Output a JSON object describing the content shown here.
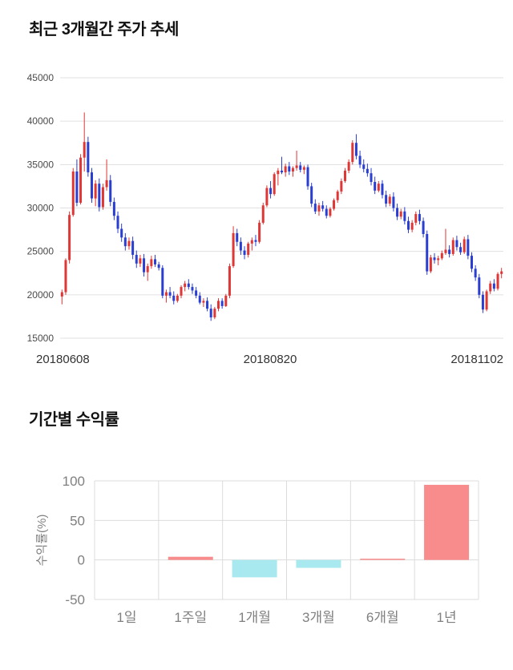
{
  "chart_data": [
    {
      "type": "candlestick",
      "title": "최근 3개월간 주가 추세",
      "x_labels": [
        "20180608",
        "20180820",
        "20181102"
      ],
      "y_ticks": [
        15000,
        20000,
        25000,
        30000,
        35000,
        40000,
        45000
      ],
      "y_min": 15000,
      "y_max": 45000,
      "up_color": "#df3636",
      "down_color": "#2a3fd2",
      "grid_color": "#e0e0e0",
      "legend": "none",
      "columns": [
        "open",
        "high",
        "low",
        "close"
      ],
      "candles": [
        [
          19800,
          20600,
          18900,
          20300
        ],
        [
          20300,
          24200,
          20000,
          24000
        ],
        [
          24000,
          29600,
          23600,
          29200
        ],
        [
          29200,
          34600,
          29000,
          34200
        ],
        [
          34200,
          35600,
          30200,
          30600
        ],
        [
          30600,
          36200,
          30400,
          35800
        ],
        [
          35800,
          41000,
          34200,
          37600
        ],
        [
          37600,
          38200,
          33600,
          34100
        ],
        [
          34100,
          34600,
          30600,
          31100
        ],
        [
          31100,
          33200,
          30200,
          32800
        ],
        [
          32800,
          33400,
          29600,
          30100
        ],
        [
          30100,
          32800,
          29800,
          32400
        ],
        [
          32400,
          35600,
          32000,
          33200
        ],
        [
          33200,
          33800,
          30200,
          30700
        ],
        [
          30700,
          31200,
          28600,
          29100
        ],
        [
          29100,
          29600,
          27100,
          27600
        ],
        [
          27600,
          28200,
          26100,
          26600
        ],
        [
          26600,
          27100,
          25100,
          25600
        ],
        [
          25600,
          26600,
          25200,
          26200
        ],
        [
          26200,
          26700,
          24100,
          24600
        ],
        [
          24600,
          25100,
          23100,
          23600
        ],
        [
          23600,
          24600,
          23200,
          24200
        ],
        [
          24200,
          24700,
          22100,
          22600
        ],
        [
          22600,
          23600,
          21600,
          23300
        ],
        [
          23300,
          24500,
          23000,
          24100
        ],
        [
          24100,
          24600,
          23200,
          23500
        ],
        [
          23500,
          23800,
          22800,
          23100
        ],
        [
          23100,
          23400,
          19600,
          19900
        ],
        [
          19900,
          20600,
          19100,
          20300
        ],
        [
          20300,
          20900,
          19600,
          19900
        ],
        [
          19900,
          20400,
          18900,
          19300
        ],
        [
          19300,
          20100,
          19100,
          19900
        ],
        [
          19900,
          21100,
          19600,
          20900
        ],
        [
          20900,
          21600,
          20400,
          21300
        ],
        [
          21300,
          21800,
          20600,
          20900
        ],
        [
          20900,
          21300,
          20100,
          20500
        ],
        [
          20500,
          20900,
          19600,
          19900
        ],
        [
          19900,
          20300,
          18900,
          19100
        ],
        [
          19100,
          19600,
          18600,
          19300
        ],
        [
          19300,
          19700,
          18100,
          18400
        ],
        [
          18400,
          18900,
          17000,
          17400
        ],
        [
          17400,
          18600,
          17200,
          18400
        ],
        [
          18400,
          19600,
          18100,
          19300
        ],
        [
          19300,
          19600,
          18400,
          18700
        ],
        [
          18700,
          20100,
          18600,
          19900
        ],
        [
          19900,
          23600,
          19600,
          23300
        ],
        [
          23300,
          27900,
          23100,
          27100
        ],
        [
          27100,
          27600,
          25600,
          26100
        ],
        [
          26100,
          26600,
          24600,
          25100
        ],
        [
          25100,
          25600,
          24100,
          24600
        ],
        [
          24600,
          26100,
          24300,
          25900
        ],
        [
          25900,
          26600,
          25100,
          26300
        ],
        [
          26300,
          26900,
          25600,
          26100
        ],
        [
          26100,
          28600,
          25900,
          28300
        ],
        [
          28300,
          30600,
          28100,
          30300
        ],
        [
          30300,
          32600,
          30100,
          32300
        ],
        [
          32300,
          33100,
          31100,
          31600
        ],
        [
          31600,
          34100,
          31400,
          33900
        ],
        [
          33900,
          34600,
          32600,
          34300
        ],
        [
          34300,
          35900,
          33900,
          34100
        ],
        [
          34100,
          35100,
          33600,
          34800
        ],
        [
          34800,
          35300,
          33800,
          34200
        ],
        [
          34200,
          34800,
          33600,
          34600
        ],
        [
          34600,
          36600,
          34300,
          34900
        ],
        [
          34900,
          35300,
          34100,
          34400
        ],
        [
          34400,
          34900,
          33900,
          34700
        ],
        [
          34700,
          35000,
          32100,
          32500
        ],
        [
          32500,
          32900,
          30100,
          30500
        ],
        [
          30500,
          31000,
          29300,
          29600
        ],
        [
          29600,
          30600,
          29100,
          30300
        ],
        [
          30300,
          30800,
          29600,
          29900
        ],
        [
          29900,
          30300,
          28800,
          29100
        ],
        [
          29100,
          30100,
          28900,
          29900
        ],
        [
          29900,
          31100,
          29700,
          30900
        ],
        [
          30900,
          32100,
          30600,
          31900
        ],
        [
          31900,
          33400,
          31600,
          33100
        ],
        [
          33100,
          34600,
          32900,
          34300
        ],
        [
          34300,
          35600,
          34000,
          35300
        ],
        [
          35300,
          37800,
          35000,
          37500
        ],
        [
          37500,
          38500,
          35600,
          36000
        ],
        [
          36000,
          36600,
          34600,
          35000
        ],
        [
          35000,
          35600,
          34100,
          34500
        ],
        [
          34500,
          35100,
          33600,
          34000
        ],
        [
          34000,
          34600,
          32600,
          33000
        ],
        [
          33000,
          33600,
          31600,
          32000
        ],
        [
          32000,
          33100,
          31800,
          32800
        ],
        [
          32800,
          33200,
          31100,
          31500
        ],
        [
          31500,
          32000,
          30100,
          30500
        ],
        [
          30500,
          31600,
          30200,
          31300
        ],
        [
          31300,
          31800,
          29600,
          30000
        ],
        [
          30000,
          30500,
          28600,
          29000
        ],
        [
          29000,
          29900,
          28700,
          29600
        ],
        [
          29600,
          30100,
          28100,
          28500
        ],
        [
          28500,
          29000,
          27100,
          27500
        ],
        [
          27500,
          28600,
          27200,
          28300
        ],
        [
          28300,
          29600,
          28000,
          29300
        ],
        [
          29300,
          29800,
          28100,
          28500
        ],
        [
          28500,
          28900,
          26600,
          27000
        ],
        [
          27000,
          27400,
          22300,
          22700
        ],
        [
          22700,
          24600,
          22500,
          24300
        ],
        [
          24300,
          24800,
          23600,
          24000
        ],
        [
          24000,
          24500,
          23400,
          24200
        ],
        [
          24200,
          25100,
          24000,
          24800
        ],
        [
          24800,
          27600,
          24600,
          25200
        ],
        [
          25200,
          25700,
          24300,
          24700
        ],
        [
          24700,
          26600,
          24500,
          26300
        ],
        [
          26300,
          26800,
          25100,
          25500
        ],
        [
          25500,
          26000,
          24600,
          24900
        ],
        [
          24900,
          26700,
          24700,
          26400
        ],
        [
          26400,
          26900,
          24100,
          24500
        ],
        [
          24500,
          24900,
          22600,
          23000
        ],
        [
          23000,
          23400,
          21600,
          22000
        ],
        [
          22000,
          22400,
          19600,
          20000
        ],
        [
          20000,
          20400,
          17900,
          18300
        ],
        [
          18300,
          20600,
          18100,
          20400
        ],
        [
          20400,
          21600,
          20100,
          21300
        ],
        [
          21300,
          21800,
          20400,
          20700
        ],
        [
          20700,
          22600,
          20500,
          22400
        ],
        [
          22400,
          23100,
          21900,
          22700
        ]
      ]
    },
    {
      "type": "bar",
      "title": "기간별 수익률",
      "ylabel": "수익률(%)",
      "categories": [
        "1일",
        "1주일",
        "1개월",
        "3개월",
        "6개월",
        "1년"
      ],
      "values": [
        0,
        4,
        -22,
        -10,
        1.5,
        95
      ],
      "y_ticks": [
        100,
        50,
        0,
        -50
      ],
      "y_min": -50,
      "y_max": 100,
      "pos_color": "#f88b8b",
      "neg_color": "#a8e9ef",
      "grid_color": "#dcdcdc",
      "legend": "none"
    }
  ]
}
